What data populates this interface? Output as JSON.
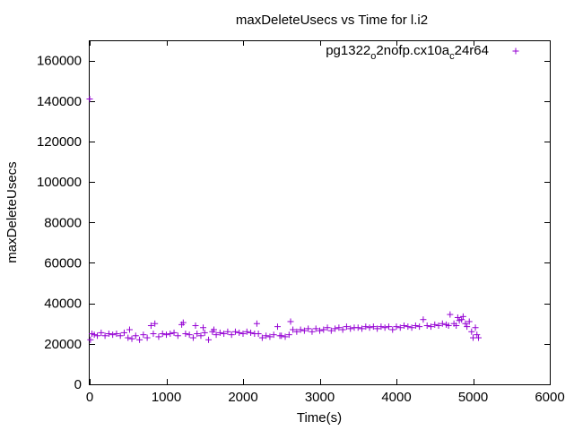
{
  "chart_data": {
    "type": "scatter",
    "title": "maxDeleteUsecs vs Time for l.i2",
    "xlabel": "Time(s)",
    "ylabel": "maxDeleteUsecs",
    "xlim": [
      0,
      6000
    ],
    "ylim": [
      0,
      170000
    ],
    "x_ticks": [
      "0",
      "1000",
      "2000",
      "3000",
      "4000",
      "5000",
      "6000"
    ],
    "y_ticks": [
      "0",
      "20000",
      "40000",
      "60000",
      "80000",
      "100000",
      "120000",
      "140000",
      "160000"
    ],
    "grid": false,
    "legend_position": "top-right",
    "marker": "plus",
    "colors": {
      "series": "#9400d3",
      "axes": "#000000"
    },
    "series": [
      {
        "name": "pg1322_o2nofp.cx10a_c24r64",
        "name_main": "pg1322",
        "name_sub1": "o",
        "name_mid": "2nofp.cx10a",
        "name_sub2": "c",
        "name_end": "24r64",
        "x": [
          0,
          10,
          30,
          60,
          100,
          150,
          200,
          250,
          300,
          350,
          400,
          450,
          500,
          520,
          550,
          600,
          650,
          700,
          750,
          800,
          830,
          850,
          900,
          950,
          1000,
          1050,
          1100,
          1150,
          1200,
          1220,
          1250,
          1300,
          1350,
          1380,
          1400,
          1450,
          1480,
          1500,
          1550,
          1600,
          1620,
          1650,
          1700,
          1750,
          1800,
          1850,
          1900,
          1950,
          2000,
          2050,
          2100,
          2150,
          2180,
          2200,
          2250,
          2300,
          2350,
          2400,
          2450,
          2480,
          2500,
          2550,
          2600,
          2620,
          2650,
          2700,
          2750,
          2800,
          2850,
          2900,
          2950,
          3000,
          3050,
          3100,
          3150,
          3200,
          3250,
          3300,
          3350,
          3400,
          3450,
          3500,
          3550,
          3600,
          3650,
          3700,
          3750,
          3800,
          3850,
          3900,
          3950,
          4000,
          4050,
          4100,
          4150,
          4200,
          4250,
          4300,
          4350,
          4400,
          4450,
          4500,
          4550,
          4600,
          4650,
          4680,
          4700,
          4750,
          4780,
          4800,
          4820,
          4850,
          4870,
          4900,
          4920,
          4950,
          4980,
          5000,
          5030,
          5050,
          5070
        ],
        "y": [
          141000,
          22000,
          25000,
          24500,
          24000,
          25500,
          24000,
          25000,
          24500,
          25000,
          24000,
          25500,
          23000,
          27000,
          22500,
          24000,
          22000,
          24500,
          23000,
          29000,
          25000,
          30000,
          23500,
          25000,
          24500,
          25000,
          25500,
          24000,
          29500,
          30500,
          25000,
          24500,
          23000,
          29000,
          25000,
          24000,
          28000,
          25500,
          22000,
          26000,
          27000,
          24500,
          25500,
          25000,
          26000,
          24500,
          26000,
          25500,
          25000,
          26000,
          25500,
          25000,
          30000,
          25000,
          23000,
          24000,
          23500,
          24500,
          28500,
          24000,
          24000,
          23500,
          24500,
          31000,
          27000,
          26000,
          27000,
          26500,
          27500,
          26000,
          27500,
          26500,
          27000,
          28000,
          26500,
          27500,
          28000,
          27000,
          28500,
          27500,
          28000,
          28000,
          27500,
          28500,
          28000,
          28500,
          27500,
          28500,
          28000,
          28500,
          27000,
          28500,
          28000,
          29000,
          28500,
          28000,
          29000,
          28500,
          32000,
          29000,
          28500,
          29500,
          29000,
          30000,
          29500,
          29000,
          34500,
          30000,
          29000,
          33000,
          31500,
          32000,
          33500,
          30000,
          28500,
          31000,
          26000,
          23000,
          28000,
          24500,
          23000
        ]
      }
    ]
  }
}
